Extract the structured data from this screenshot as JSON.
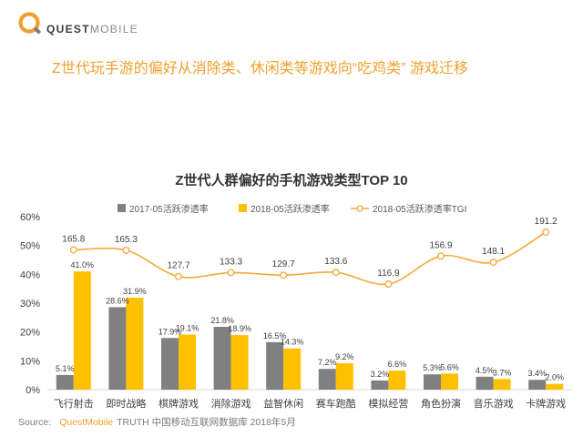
{
  "brand": {
    "part1": "QUEST",
    "part2": "MOBILE"
  },
  "headline": "Z世代玩手游的偏好从消除类、休闲类等游戏向“吃鸡类” 游戏迁移",
  "colors": {
    "accent": "#EFA12E"
  },
  "chart_data": {
    "type": "bar",
    "title": "Z世代人群偏好的手机游戏类型TOP 10",
    "categories": [
      "飞行射击",
      "即时战略",
      "棋牌游戏",
      "消除游戏",
      "益智休闲",
      "赛车跑酷",
      "模拟经营",
      "角色扮演",
      "音乐游戏",
      "卡牌游戏"
    ],
    "series": [
      {
        "name": "2017-05活跃渗透率",
        "type": "bar",
        "color": "#808080",
        "values": [
          5.1,
          28.6,
          17.9,
          21.8,
          16.5,
          7.2,
          3.2,
          5.3,
          4.5,
          3.4
        ]
      },
      {
        "name": "2018-05活跃渗透率",
        "type": "bar",
        "color": "#FFC000",
        "values": [
          41.0,
          31.9,
          19.1,
          18.9,
          14.3,
          9.2,
          6.6,
          5.6,
          3.7,
          2.0
        ]
      },
      {
        "name": "2018-05活跃渗透率TGI",
        "type": "line",
        "color": "#F2A93B",
        "values": [
          165.8,
          165.3,
          127.7,
          133.3,
          129.7,
          133.6,
          116.9,
          156.9,
          148.1,
          191.2
        ]
      }
    ],
    "yunit": "%",
    "yticks": [
      0,
      10,
      20,
      30,
      40,
      50,
      60
    ],
    "ylim": [
      0,
      60
    ],
    "xlabel": "",
    "ylabel": "",
    "legend": "top",
    "grid": false
  },
  "source": {
    "prefix": "Source:",
    "brand": "QuestMobile",
    "text": "TRUTH 中国移动互联网数据库 2018年5月"
  }
}
